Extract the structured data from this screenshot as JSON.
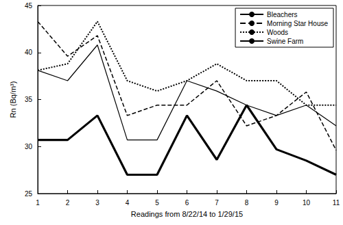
{
  "chart_data": {
    "type": "line",
    "x_label": "Readings from 8/22/14 to 1/29/15",
    "y_label": "Rn (Bq/m³)",
    "x": [
      1,
      2,
      3,
      4,
      5,
      6,
      7,
      8,
      9,
      10,
      11
    ],
    "xlim": [
      1,
      11
    ],
    "xticks": [
      1,
      2,
      3,
      4,
      5,
      6,
      7,
      8,
      9,
      10,
      11
    ],
    "ylim": [
      25,
      45
    ],
    "yticks": [
      25,
      30,
      35,
      40,
      45
    ],
    "grid": false,
    "legend": "upper right",
    "series": [
      {
        "name": "Bleachers",
        "color": "#000000",
        "line_style": "bold",
        "values": [
          30.7,
          30.7,
          33.3,
          27.0,
          27.0,
          33.3,
          28.6,
          34.4,
          29.7,
          28.5,
          27.0
        ]
      },
      {
        "name": "Morning Star House",
        "color": "#000000",
        "line_style": "dashed",
        "values": [
          43.3,
          39.6,
          41.8,
          33.3,
          34.4,
          34.4,
          37.0,
          32.2,
          33.3,
          35.8,
          29.6
        ]
      },
      {
        "name": "Woods",
        "color": "#000000",
        "line_style": "dotted",
        "values": [
          38.1,
          38.8,
          43.3,
          37.0,
          35.9,
          37.0,
          38.8,
          37.0,
          37.0,
          34.4,
          34.4
        ]
      },
      {
        "name": "Swine Farm",
        "color": "#000000",
        "line_style": "solid",
        "values": [
          38.1,
          37.0,
          40.8,
          30.7,
          30.7,
          37.0,
          35.9,
          34.4,
          33.3,
          34.4,
          32.2
        ]
      }
    ]
  }
}
